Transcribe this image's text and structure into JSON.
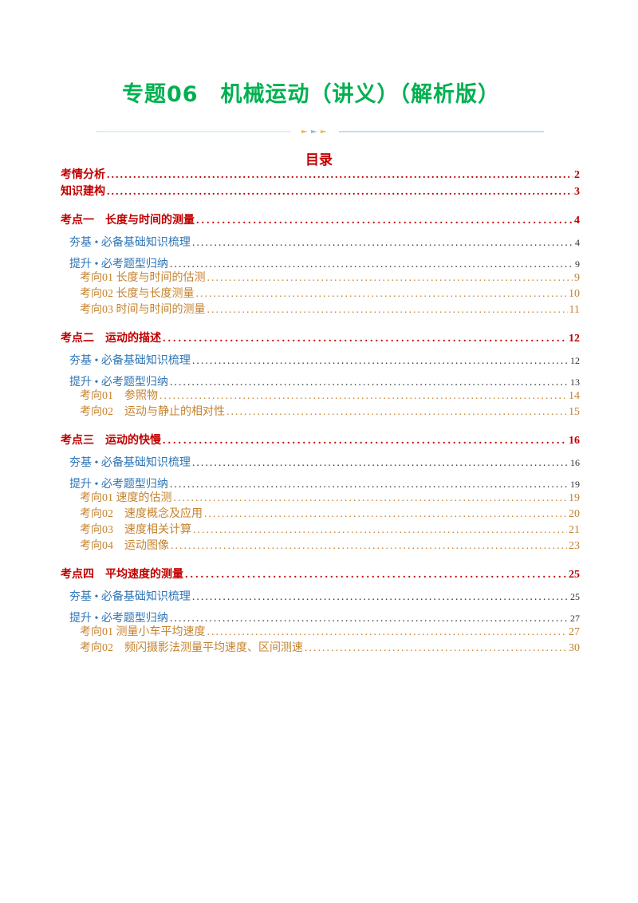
{
  "header": {
    "title": "专题06　机械运动（讲义）（解析版）"
  },
  "toc": {
    "heading": "目录",
    "entries": [
      {
        "text": "考情分析",
        "page": "2"
      },
      {
        "text": "知识建构",
        "page": "3"
      }
    ],
    "chapters": [
      {
        "text": "考点一　长度与时间的测量",
        "page": "4",
        "basics": {
          "text": "夯基 • 必备基础知识梳理",
          "page": "4"
        },
        "types": {
          "text": "提升 • 必考题型归纳",
          "page": "9",
          "items": [
            {
              "text": "考向01 长度与时间的估测",
              "page": "9"
            },
            {
              "text": "考向02 长度与长度测量",
              "page": "10"
            },
            {
              "text": "考向03 时间与时间的测量",
              "page": "11"
            }
          ]
        }
      },
      {
        "text": "考点二　运动的描述",
        "page": "12",
        "basics": {
          "text": "夯基 • 必备基础知识梳理",
          "page": "12"
        },
        "types": {
          "text": "提升 • 必考题型归纳",
          "page": "13",
          "items": [
            {
              "text": "考向01　参照物",
              "page": "14"
            },
            {
              "text": "考向02　运动与静止的相对性",
              "page": "15"
            }
          ]
        }
      },
      {
        "text": "考点三　运动的快慢",
        "page": "16",
        "basics": {
          "text": "夯基 • 必备基础知识梳理",
          "page": "16"
        },
        "types": {
          "text": "提升 • 必考题型归纳",
          "page": "19",
          "items": [
            {
              "text": "考向01 速度的估测",
              "page": "19"
            },
            {
              "text": "考向02　速度概念及应用",
              "page": "20"
            },
            {
              "text": "考向03　速度相关计算",
              "page": "21"
            },
            {
              "text": "考向04　运动图像",
              "page": "23"
            }
          ]
        }
      },
      {
        "text": "考点四　平均速度的测量",
        "page": "25",
        "basics": {
          "text": "夯基 • 必备基础知识梳理",
          "page": "25"
        },
        "types": {
          "text": "提升 • 必考题型归纳",
          "page": "27",
          "items": [
            {
              "text": "考向01 测量小车平均速度",
              "page": "27"
            },
            {
              "text": "考向02　频闪摄影法测量平均速度、区间测速",
              "page": "30"
            }
          ]
        }
      }
    ]
  }
}
